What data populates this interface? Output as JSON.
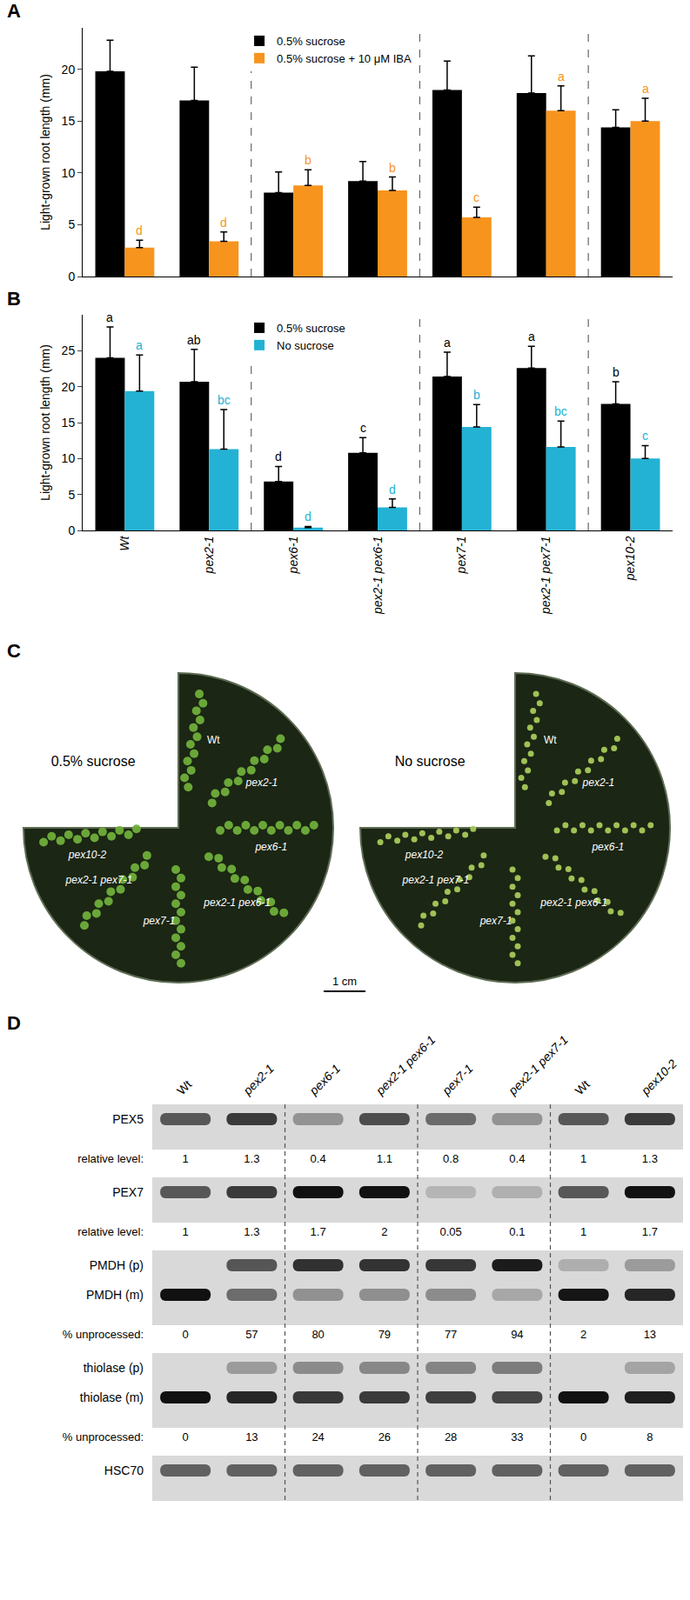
{
  "chart_data": [
    {
      "type": "bar",
      "title": "A",
      "categories": [
        "Wt",
        "pex2-1",
        "pex6-1",
        "pex2-1 pex6-1",
        "pex7-1",
        "pex2-1 pex7-1",
        "pex10-2"
      ],
      "series": [
        {
          "name": "0.5% sucrose",
          "color": "#000000",
          "values": [
            19.8,
            17.0,
            8.1,
            9.2,
            18.0,
            17.7,
            14.4
          ],
          "errors": [
            3.0,
            3.2,
            2.0,
            1.9,
            2.8,
            3.6,
            1.7
          ]
        },
        {
          "name": "0.5% sucrose + 10 μM IBA",
          "color": "#f7941d",
          "values": [
            2.8,
            3.4,
            8.8,
            8.3,
            5.7,
            16.0,
            15.0
          ],
          "errors": [
            0.7,
            0.9,
            1.5,
            1.3,
            1.0,
            2.4,
            2.2
          ],
          "letters": [
            "d",
            "d",
            "b",
            "b",
            "c",
            "a",
            "a"
          ]
        }
      ],
      "ylabel": "Light-grown root length (mm)",
      "ylim": [
        0,
        24
      ],
      "yticks": [
        0,
        5,
        10,
        15,
        20
      ],
      "grid": false,
      "legend": "top",
      "tick_labels": "y"
    },
    {
      "type": "bar",
      "title": "B",
      "categories": [
        "Wt",
        "pex2-1",
        "pex6-1",
        "pex2-1 pex6-1",
        "pex7-1",
        "pex2-1 pex7-1",
        "pex10-2"
      ],
      "series": [
        {
          "name": "0.5% sucrose",
          "color": "#000000",
          "values": [
            24.0,
            20.7,
            6.8,
            10.8,
            21.4,
            22.6,
            17.6
          ],
          "errors": [
            4.3,
            4.5,
            2.1,
            2.1,
            3.4,
            3.0,
            3.1
          ],
          "letters": [
            "a",
            "ab",
            "d",
            "c",
            "a",
            "a",
            "b"
          ]
        },
        {
          "name": "No sucrose",
          "color": "#23b2d4",
          "values": [
            19.4,
            11.3,
            0.4,
            3.2,
            14.4,
            11.6,
            10.0
          ],
          "errors": [
            5.0,
            5.5,
            0.15,
            1.2,
            3.1,
            3.6,
            1.8
          ],
          "letters": [
            "a",
            "bc",
            "d",
            "d",
            "b",
            "bc",
            "c"
          ]
        }
      ],
      "ylabel": "Light-grown root length (mm)",
      "ylim": [
        0,
        30
      ],
      "yticks": [
        0,
        5,
        10,
        15,
        20,
        25
      ],
      "grid": false,
      "legend": "top"
    }
  ],
  "panel_C": {
    "label": "C",
    "scale_bar": "1 cm",
    "plates": [
      {
        "condition": "0.5% sucrose",
        "lines": [
          "Wt",
          "pex2-1",
          "pex6-1",
          "pex2-1 pex6-1",
          "pex7-1",
          "pex2-1 pex7-1",
          "pex10-2"
        ]
      },
      {
        "condition": "No sucrose",
        "lines": [
          "Wt",
          "pex2-1",
          "pex6-1",
          "pex2-1 pex6-1",
          "pex7-1",
          "pex2-1 pex7-1",
          "pex10-2"
        ]
      }
    ]
  },
  "panel_D": {
    "label": "D",
    "lanes": [
      "Wt",
      "pex2-1",
      "pex6-1",
      "pex2-1 pex6-1",
      "pex7-1",
      "pex2-1 pex7-1",
      "Wt",
      "pex10-2"
    ],
    "blots": [
      {
        "bands": [
          "PEX5"
        ],
        "quant_label": "relative level:",
        "values": [
          1,
          1.3,
          0.4,
          1.1,
          0.8,
          0.4,
          1,
          1.3
        ]
      },
      {
        "bands": [
          "PEX7"
        ],
        "quant_label": "relative level:",
        "values": [
          1,
          1.3,
          1.7,
          2,
          0.05,
          0.1,
          1,
          1.7
        ]
      },
      {
        "bands": [
          "PMDH (p)",
          "PMDH (m)"
        ],
        "quant_label": "% unprocessed:",
        "values": [
          0,
          57,
          80,
          79,
          77,
          94,
          2,
          13
        ]
      },
      {
        "bands": [
          "thiolase (p)",
          "thiolase (m)"
        ],
        "quant_label": "% unprocessed:",
        "values": [
          0,
          13,
          24,
          26,
          28,
          33,
          0,
          8
        ]
      },
      {
        "bands": [
          "HSC70"
        ]
      }
    ]
  }
}
